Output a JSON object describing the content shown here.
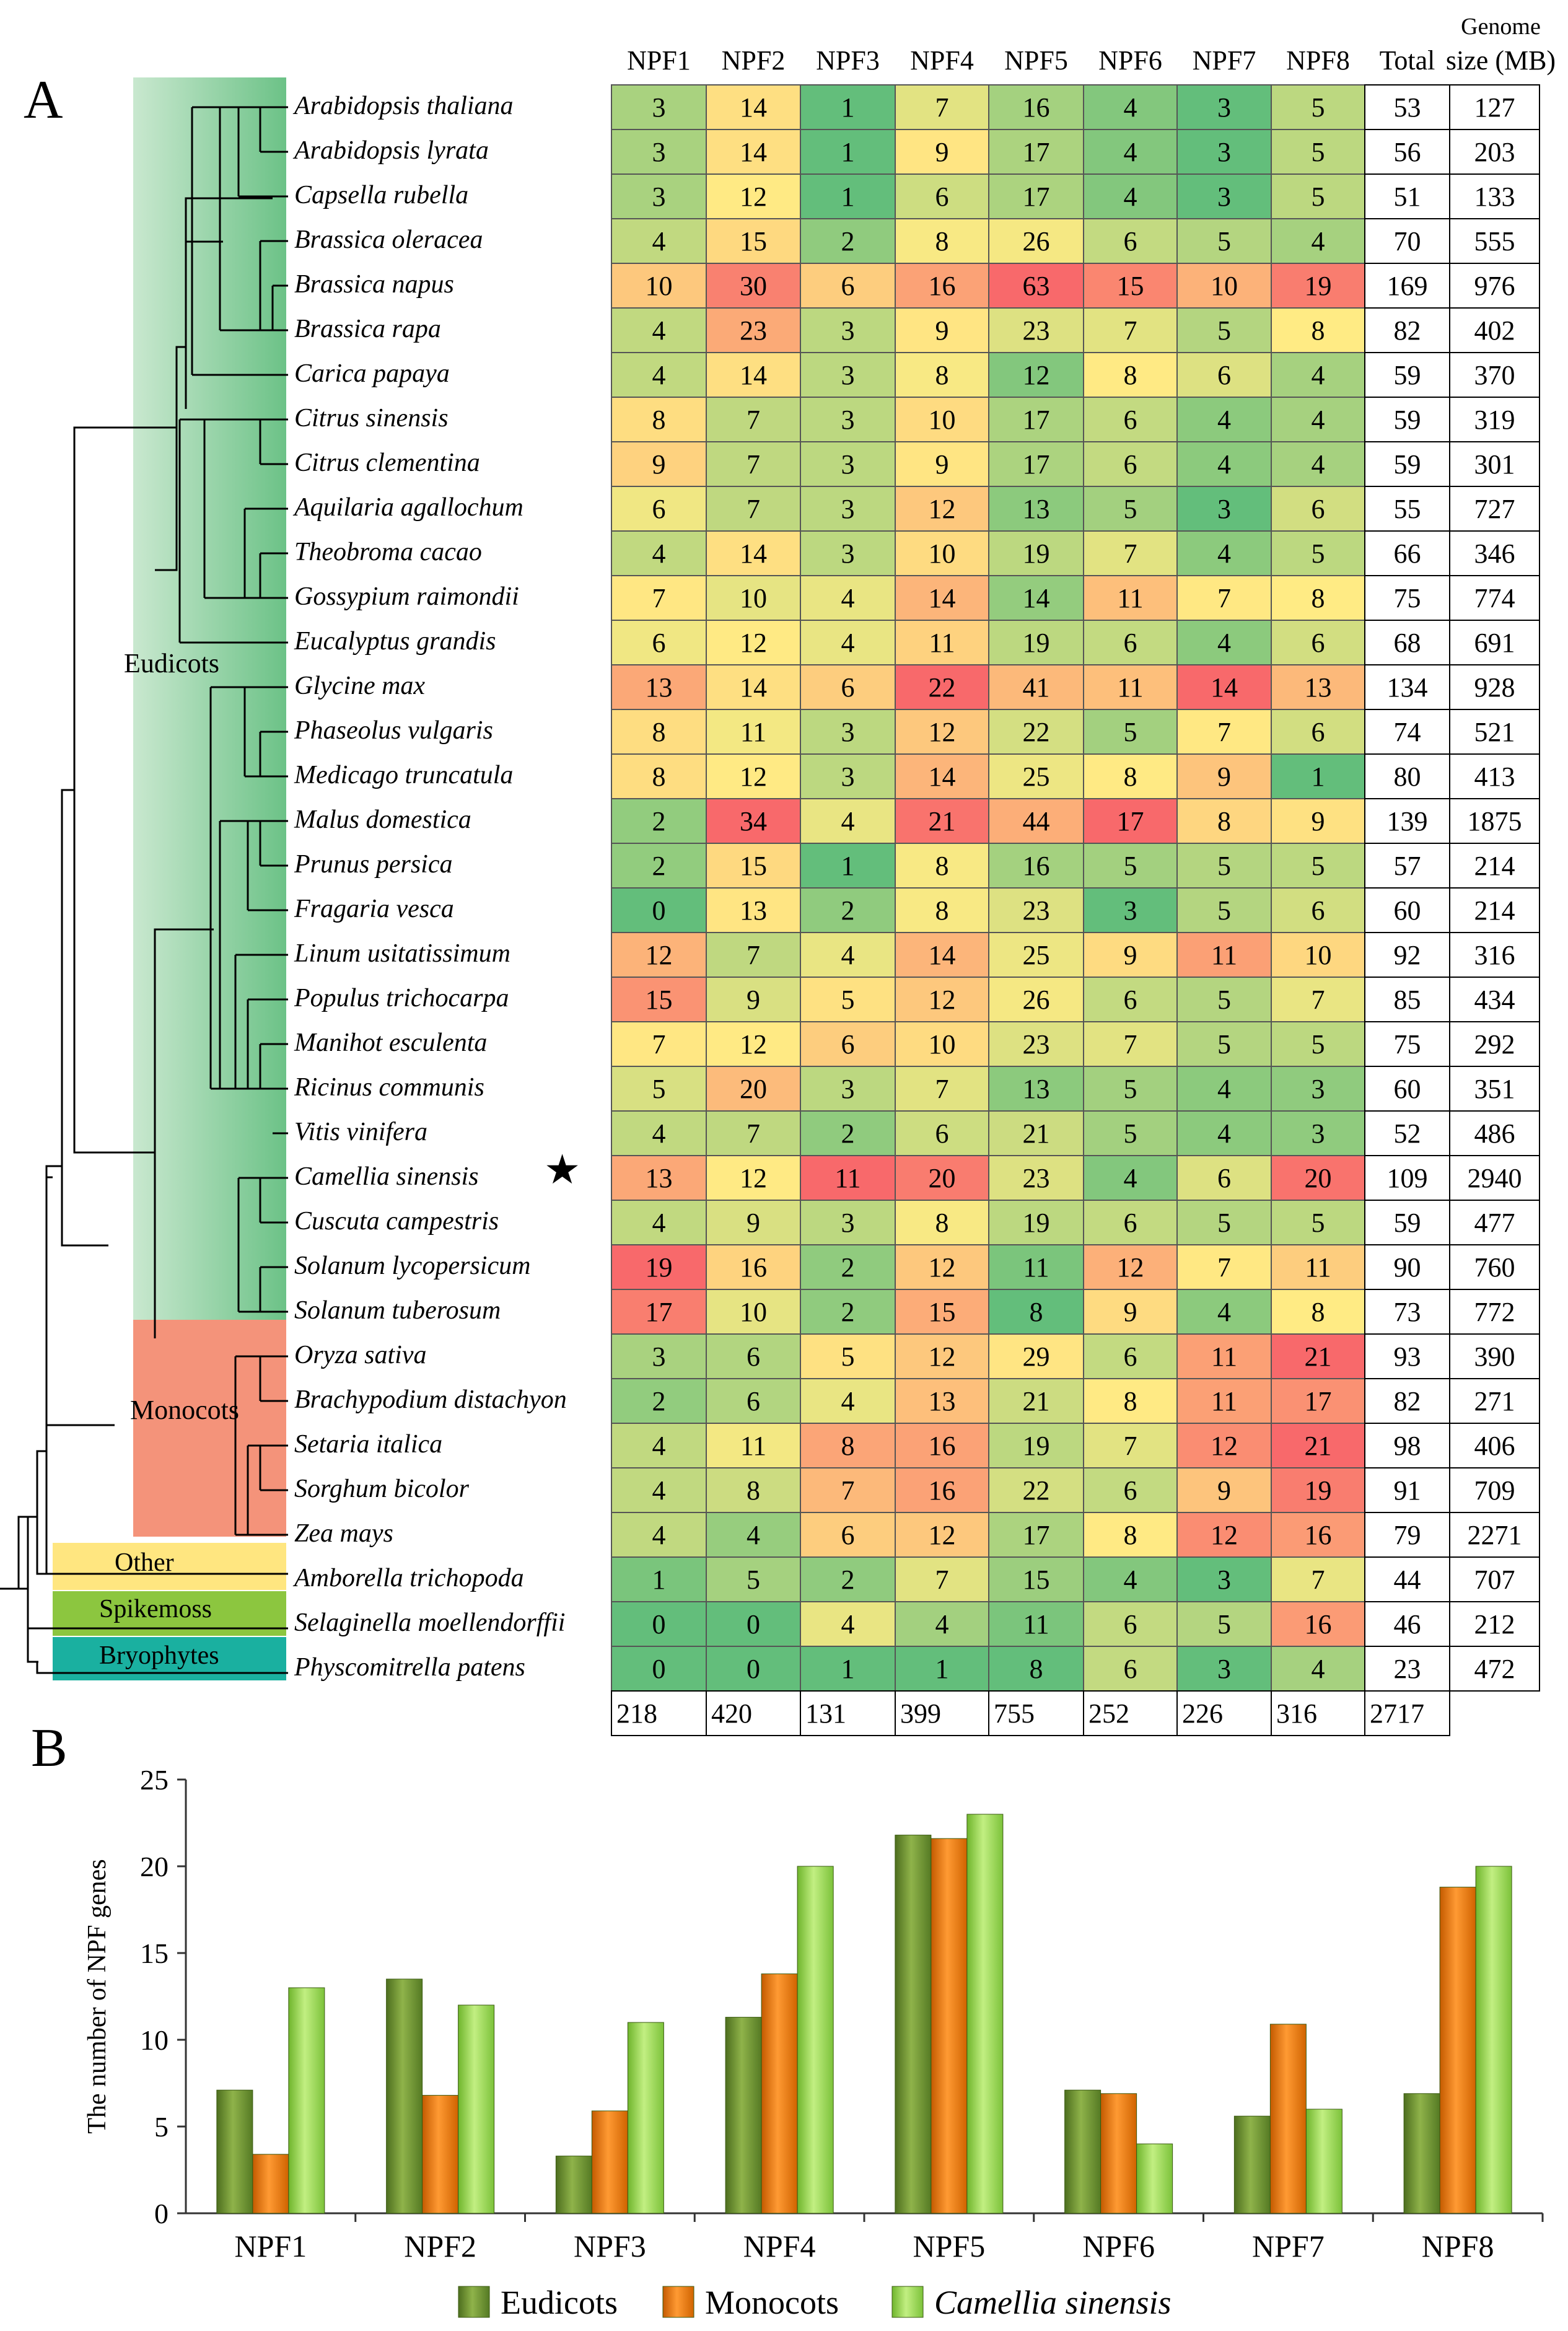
{
  "panel_a_label": "A",
  "panel_b_label": "B",
  "clade_labels": {
    "eudicots": "Eudicots",
    "monocots": "Monocots",
    "other": "Other",
    "spikemoss": "Spikemoss",
    "bryophytes": "Bryophytes"
  },
  "colors": {
    "eudicots": "#6b8e2f",
    "monocots": "#e8740c",
    "camellia": "#92d050",
    "clade_eudicots": "#7fc89a",
    "clade_monocots": "#f4937a",
    "clade_other": "#ffe680",
    "clade_spikemoss": "#8cc63f",
    "clade_bryophytes": "#1ab0a0",
    "heat_low": "#63be7b",
    "heat_mid": "#ffeb84",
    "heat_high": "#f8696b"
  },
  "marker_symbol": "★",
  "chart_data": [
    {
      "type": "table",
      "columns": [
        "NPF1",
        "NPF2",
        "NPF3",
        "NPF4",
        "NPF5",
        "NPF6",
        "NPF7",
        "NPF8",
        "Total"
      ],
      "genome_header": [
        "Genome",
        "size (MB)"
      ],
      "highlighted_species": "Camellia sinensis",
      "rows": [
        {
          "species": "Arabidopsis thaliana",
          "counts": [
            3,
            14,
            1,
            7,
            16,
            4,
            3,
            5
          ],
          "total": 53,
          "genome": 127
        },
        {
          "species": "Arabidopsis lyrata",
          "counts": [
            3,
            14,
            1,
            9,
            17,
            4,
            3,
            5
          ],
          "total": 56,
          "genome": 203
        },
        {
          "species": "Capsella rubella",
          "counts": [
            3,
            12,
            1,
            6,
            17,
            4,
            3,
            5
          ],
          "total": 51,
          "genome": 133
        },
        {
          "species": "Brassica oleracea",
          "counts": [
            4,
            15,
            2,
            8,
            26,
            6,
            5,
            4
          ],
          "total": 70,
          "genome": 555
        },
        {
          "species": "Brassica napus",
          "counts": [
            10,
            30,
            6,
            16,
            63,
            15,
            10,
            19
          ],
          "total": 169,
          "genome": 976
        },
        {
          "species": "Brassica rapa",
          "counts": [
            4,
            23,
            3,
            9,
            23,
            7,
            5,
            8
          ],
          "total": 82,
          "genome": 402
        },
        {
          "species": "Carica papaya",
          "counts": [
            4,
            14,
            3,
            8,
            12,
            8,
            6,
            4
          ],
          "total": 59,
          "genome": 370
        },
        {
          "species": "Citrus sinensis",
          "counts": [
            8,
            7,
            3,
            10,
            17,
            6,
            4,
            4
          ],
          "total": 59,
          "genome": 319
        },
        {
          "species": "Citrus clementina",
          "counts": [
            9,
            7,
            3,
            9,
            17,
            6,
            4,
            4
          ],
          "total": 59,
          "genome": 301
        },
        {
          "species": "Aquilaria agallochum",
          "counts": [
            6,
            7,
            3,
            12,
            13,
            5,
            3,
            6
          ],
          "total": 55,
          "genome": 727
        },
        {
          "species": "Theobroma cacao",
          "counts": [
            4,
            14,
            3,
            10,
            19,
            7,
            4,
            5
          ],
          "total": 66,
          "genome": 346
        },
        {
          "species": "Gossypium raimondii",
          "counts": [
            7,
            10,
            4,
            14,
            14,
            11,
            7,
            8
          ],
          "total": 75,
          "genome": 774
        },
        {
          "species": "Eucalyptus grandis",
          "counts": [
            6,
            12,
            4,
            11,
            19,
            6,
            4,
            6
          ],
          "total": 68,
          "genome": 691
        },
        {
          "species": "Glycine max",
          "counts": [
            13,
            14,
            6,
            22,
            41,
            11,
            14,
            13
          ],
          "total": 134,
          "genome": 928
        },
        {
          "species": "Phaseolus vulgaris",
          "counts": [
            8,
            11,
            3,
            12,
            22,
            5,
            7,
            6
          ],
          "total": 74,
          "genome": 521
        },
        {
          "species": "Medicago truncatula",
          "counts": [
            8,
            12,
            3,
            14,
            25,
            8,
            9,
            1
          ],
          "total": 80,
          "genome": 413
        },
        {
          "species": "Malus domestica",
          "counts": [
            2,
            34,
            4,
            21,
            44,
            17,
            8,
            9
          ],
          "total": 139,
          "genome": 1875
        },
        {
          "species": "Prunus persica",
          "counts": [
            2,
            15,
            1,
            8,
            16,
            5,
            5,
            5
          ],
          "total": 57,
          "genome": 214
        },
        {
          "species": "Fragaria vesca",
          "counts": [
            0,
            13,
            2,
            8,
            23,
            3,
            5,
            6
          ],
          "total": 60,
          "genome": 214
        },
        {
          "species": "Linum usitatissimum",
          "counts": [
            12,
            7,
            4,
            14,
            25,
            9,
            11,
            10
          ],
          "total": 92,
          "genome": 316
        },
        {
          "species": "Populus trichocarpa",
          "counts": [
            15,
            9,
            5,
            12,
            26,
            6,
            5,
            7
          ],
          "total": 85,
          "genome": 434
        },
        {
          "species": "Manihot esculenta",
          "counts": [
            7,
            12,
            6,
            10,
            23,
            7,
            5,
            5
          ],
          "total": 75,
          "genome": 292
        },
        {
          "species": "Ricinus communis",
          "counts": [
            5,
            20,
            3,
            7,
            13,
            5,
            4,
            3
          ],
          "total": 60,
          "genome": 351
        },
        {
          "species": "Vitis vinifera",
          "counts": [
            4,
            7,
            2,
            6,
            21,
            5,
            4,
            3
          ],
          "total": 52,
          "genome": 486
        },
        {
          "species": "Camellia sinensis",
          "counts": [
            13,
            12,
            11,
            20,
            23,
            4,
            6,
            20
          ],
          "total": 109,
          "genome": 2940
        },
        {
          "species": "Cuscuta campestris",
          "counts": [
            4,
            9,
            3,
            8,
            19,
            6,
            5,
            5
          ],
          "total": 59,
          "genome": 477
        },
        {
          "species": "Solanum lycopersicum",
          "counts": [
            19,
            16,
            2,
            12,
            11,
            12,
            7,
            11
          ],
          "total": 90,
          "genome": 760
        },
        {
          "species": "Solanum tuberosum",
          "counts": [
            17,
            10,
            2,
            15,
            8,
            9,
            4,
            8
          ],
          "total": 73,
          "genome": 772
        },
        {
          "species": "Oryza sativa",
          "counts": [
            3,
            6,
            5,
            12,
            29,
            6,
            11,
            21
          ],
          "total": 93,
          "genome": 390
        },
        {
          "species": "Brachypodium distachyon",
          "counts": [
            2,
            6,
            4,
            13,
            21,
            8,
            11,
            17
          ],
          "total": 82,
          "genome": 271
        },
        {
          "species": "Setaria italica",
          "counts": [
            4,
            11,
            8,
            16,
            19,
            7,
            12,
            21
          ],
          "total": 98,
          "genome": 406
        },
        {
          "species": "Sorghum bicolor",
          "counts": [
            4,
            8,
            7,
            16,
            22,
            6,
            9,
            19
          ],
          "total": 91,
          "genome": 709
        },
        {
          "species": "Zea mays",
          "counts": [
            4,
            4,
            6,
            12,
            17,
            8,
            12,
            16
          ],
          "total": 79,
          "genome": 2271
        },
        {
          "species": "Amborella trichopoda",
          "counts": [
            1,
            5,
            2,
            7,
            15,
            4,
            3,
            7
          ],
          "total": 44,
          "genome": 707
        },
        {
          "species": "Selaginella moellendorffii",
          "counts": [
            0,
            0,
            4,
            4,
            11,
            6,
            5,
            16
          ],
          "total": 46,
          "genome": 212
        },
        {
          "species": "Physcomitrella patens",
          "counts": [
            0,
            0,
            1,
            1,
            8,
            6,
            3,
            4
          ],
          "total": 23,
          "genome": 472
        }
      ],
      "column_totals": [
        218,
        420,
        131,
        399,
        755,
        252,
        226,
        316,
        2717
      ]
    },
    {
      "type": "bar",
      "categories": [
        "NPF1",
        "NPF2",
        "NPF3",
        "NPF4",
        "NPF5",
        "NPF6",
        "NPF7",
        "NPF8"
      ],
      "ylabel": "The number of NPF genes",
      "ylim": [
        0,
        25
      ],
      "yticks": [
        0,
        5,
        10,
        15,
        20,
        25
      ],
      "legend_position": "bottom",
      "series": [
        {
          "name": "Eudicots",
          "values": [
            7.1,
            13.5,
            3.3,
            11.3,
            21.8,
            7.1,
            5.6,
            6.9
          ]
        },
        {
          "name": "Monocots",
          "values": [
            3.4,
            6.8,
            5.9,
            13.8,
            21.6,
            6.9,
            10.9,
            18.8
          ]
        },
        {
          "name": "Camellia sinensis",
          "values": [
            13,
            12,
            11,
            20,
            23,
            4,
            6,
            20
          ]
        }
      ]
    }
  ]
}
